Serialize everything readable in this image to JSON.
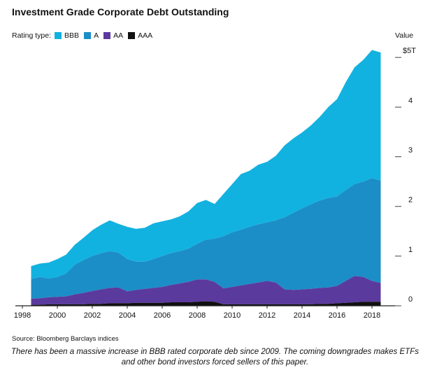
{
  "title": "Investment Grade Corporate Debt Outstanding",
  "legend_label": "Rating type:",
  "value_header": "Value",
  "source": "Source: Bloomberg Barclays indices",
  "caption": "There has been a massive increase in BBB rated corporate deb since 2009. The coming downgrades makes ETFs and other bond investors forced sellers of this paper.",
  "chart_data": {
    "type": "area",
    "stacked": true,
    "x_unit": "year",
    "xlim": [
      1998,
      2019
    ],
    "ylim": [
      0,
      5.2
    ],
    "x_ticks": [
      "1998",
      "2000",
      "2002",
      "2004",
      "2006",
      "2008",
      "2010",
      "2012",
      "2014",
      "2016",
      "2018"
    ],
    "y_ticks": [
      0,
      1,
      2,
      3,
      4,
      5
    ],
    "y_tick_labels": [
      "0",
      "1",
      "2",
      "3",
      "4",
      "$5T"
    ],
    "y_axis_side": "right",
    "grid": false,
    "legend_placement": "top-left",
    "x": [
      1998.5,
      1999.0,
      1999.5,
      2000.0,
      2000.5,
      2001.0,
      2001.5,
      2002.0,
      2002.5,
      2003.0,
      2003.5,
      2004.0,
      2004.5,
      2005.0,
      2005.5,
      2006.0,
      2006.5,
      2007.0,
      2007.5,
      2008.0,
      2008.5,
      2009.0,
      2009.5,
      2010.0,
      2010.5,
      2011.0,
      2011.5,
      2012.0,
      2012.5,
      2013.0,
      2013.5,
      2014.0,
      2014.5,
      2015.0,
      2015.5,
      2016.0,
      2016.5,
      2017.0,
      2017.5,
      2018.0,
      2018.5
    ],
    "series": [
      {
        "name": "AAA",
        "color": "#111111",
        "values": [
          0.02,
          0.02,
          0.03,
          0.03,
          0.03,
          0.03,
          0.03,
          0.04,
          0.04,
          0.05,
          0.05,
          0.05,
          0.06,
          0.06,
          0.06,
          0.06,
          0.07,
          0.07,
          0.07,
          0.08,
          0.09,
          0.08,
          0.03,
          0.03,
          0.03,
          0.03,
          0.03,
          0.03,
          0.03,
          0.03,
          0.03,
          0.03,
          0.03,
          0.04,
          0.04,
          0.05,
          0.06,
          0.07,
          0.08,
          0.08,
          0.08
        ]
      },
      {
        "name": "AA",
        "color": "#5b3a9e",
        "values": [
          0.12,
          0.13,
          0.14,
          0.15,
          0.16,
          0.2,
          0.23,
          0.26,
          0.29,
          0.31,
          0.32,
          0.24,
          0.26,
          0.28,
          0.3,
          0.32,
          0.35,
          0.38,
          0.41,
          0.45,
          0.44,
          0.4,
          0.32,
          0.35,
          0.38,
          0.41,
          0.44,
          0.47,
          0.44,
          0.3,
          0.29,
          0.3,
          0.31,
          0.32,
          0.33,
          0.35,
          0.44,
          0.53,
          0.5,
          0.42,
          0.38
        ]
      },
      {
        "name": "A",
        "color": "#1b8ec7",
        "values": [
          0.4,
          0.43,
          0.38,
          0.4,
          0.46,
          0.6,
          0.66,
          0.7,
          0.73,
          0.74,
          0.7,
          0.65,
          0.57,
          0.55,
          0.58,
          0.62,
          0.64,
          0.65,
          0.67,
          0.72,
          0.8,
          0.87,
          1.05,
          1.1,
          1.12,
          1.15,
          1.17,
          1.18,
          1.25,
          1.45,
          1.55,
          1.63,
          1.7,
          1.76,
          1.8,
          1.8,
          1.83,
          1.85,
          1.92,
          2.07,
          2.06
        ]
      },
      {
        "name": "BBB",
        "color": "#12b2e0",
        "values": [
          0.26,
          0.27,
          0.32,
          0.36,
          0.38,
          0.4,
          0.45,
          0.52,
          0.57,
          0.62,
          0.58,
          0.65,
          0.66,
          0.68,
          0.72,
          0.7,
          0.68,
          0.7,
          0.75,
          0.82,
          0.8,
          0.7,
          0.85,
          0.97,
          1.12,
          1.13,
          1.2,
          1.22,
          1.3,
          1.45,
          1.5,
          1.53,
          1.59,
          1.68,
          1.83,
          1.96,
          2.17,
          2.35,
          2.45,
          2.58,
          2.58
        ]
      }
    ]
  }
}
